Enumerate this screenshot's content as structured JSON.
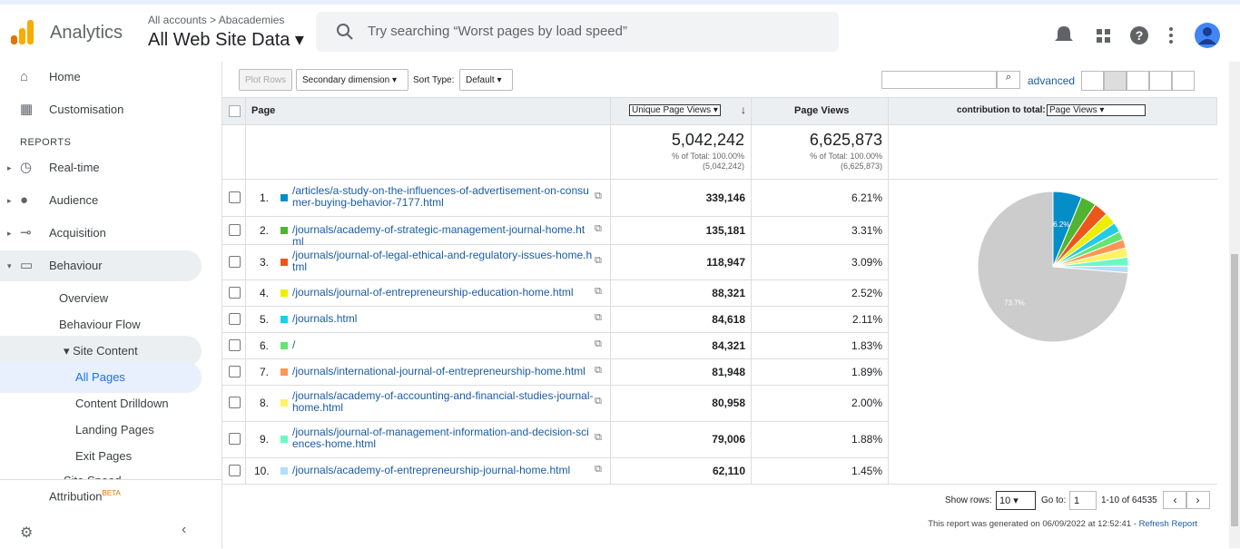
{
  "header": {
    "app": "Analytics",
    "breadcrumb": [
      "All accounts",
      "Abacademies"
    ],
    "property": "All Web Site Data",
    "search_placeholder": "Try searching “Worst pages by load speed”"
  },
  "sidebar": {
    "items": [
      {
        "label": "Home"
      },
      {
        "label": "Customisation"
      },
      {
        "label": "REPORTS"
      },
      {
        "label": "Real-time"
      },
      {
        "label": "Audience"
      },
      {
        "label": "Acquisition"
      },
      {
        "label": "Behaviour"
      },
      {
        "label": "Overview"
      },
      {
        "label": "Behaviour Flow"
      },
      {
        "label": "Site Content"
      },
      {
        "label": "All Pages"
      },
      {
        "label": "Content Drilldown"
      },
      {
        "label": "Landing Pages"
      },
      {
        "label": "Exit Pages"
      },
      {
        "label": "Site Speed"
      }
    ],
    "attribution": "Attribution",
    "beta": "BETA"
  },
  "toolbar": {
    "plot_rows": "Plot Rows",
    "secondary_dimension": "Secondary dimension",
    "sort_type_label": "Sort Type:",
    "sort_type": "Default",
    "advanced": "advanced"
  },
  "table": {
    "columns": [
      "Page",
      "Unique Page Views",
      "Page Views",
      "contribution to total:"
    ],
    "contribution_select": "Page Views",
    "totals": {
      "unique": [
        "5,042,242",
        "% of Total: 100.00%",
        "(5,042,242)"
      ],
      "views": [
        "6,625,873",
        "% of Total: 100.00%",
        "(6,625,873)"
      ]
    },
    "rows": [
      [
        "1.",
        "/articles/a-study-on-the-influences-of-advertisement-on-consumer-buying-behavior-7177.html",
        "339,146",
        "6.21%"
      ],
      [
        "2.",
        "/journals/academy-of-strategic-management-journal-home.html",
        "135,181",
        "3.31%"
      ],
      [
        "3.",
        "/journals/journal-of-legal-ethical-and-regulatory-issues-home.html",
        "118,947",
        "3.09%"
      ],
      [
        "4.",
        "/journals/journal-of-entrepreneurship-education-home.html",
        "88,321",
        "2.52%"
      ],
      [
        "5.",
        "/journals.html",
        "84,618",
        "2.11%"
      ],
      [
        "6.",
        "/",
        "84,321",
        "1.83%"
      ],
      [
        "7.",
        "/journals/international-journal-of-entrepreneurship-home.html",
        "81,948",
        "1.89%"
      ],
      [
        "8.",
        "/journals/academy-of-accounting-and-financial-studies-journal-home.html",
        "80,958",
        "2.00%"
      ],
      [
        "9.",
        "/journals/journal-of-management-information-and-decision-sciences-home.html",
        "79,006",
        "1.88%"
      ],
      [
        "10.",
        "/journals/academy-of-entrepreneurship-journal-home.html",
        "62,110",
        "1.45%"
      ]
    ]
  },
  "pie": {
    "slices": [
      {
        "value": 6.21,
        "label": "6.2%",
        "color": "#058dc7"
      },
      {
        "value": 3.31,
        "color": "#50b432"
      },
      {
        "value": 3.09,
        "color": "#ed561b"
      },
      {
        "value": 2.52,
        "color": "#edef00"
      },
      {
        "value": 2.11,
        "color": "#24cbe5"
      },
      {
        "value": 1.83,
        "color": "#64e572"
      },
      {
        "value": 1.89,
        "color": "#ff9655"
      },
      {
        "value": 2.0,
        "color": "#fff263"
      },
      {
        "value": 1.88,
        "color": "#6af9c4"
      },
      {
        "value": 1.45,
        "color": "#b2deff"
      },
      {
        "value": 73.7,
        "label": "73.7%",
        "color": "#cccccc"
      }
    ]
  },
  "footer": {
    "show_rows_label": "Show rows:",
    "show_rows": "10",
    "goto_label": "Go to:",
    "goto": "1",
    "range": "1-10 of 64535",
    "generated": "This report was generated on 06/09/2022 at 12:52:41 - ",
    "refresh": "Refresh Report"
  }
}
